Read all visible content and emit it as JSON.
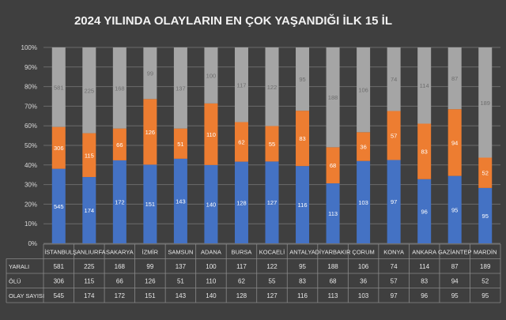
{
  "chart_data": {
    "type": "bar",
    "stacking": "percent",
    "title": "2024 YILINDA OLAYLARIN EN ÇOK YAŞANDIĞI İLK 15 İL",
    "categories": [
      "İSTANBUL",
      "ŞANLIURFA",
      "SAKARYA",
      "İZMİR",
      "SAMSUN",
      "ADANA",
      "BURSA",
      "KOCAELİ",
      "ANTALYA",
      "DİYARBAKIR",
      "ÇORUM",
      "KONYA",
      "ANKARA",
      "GAZİANTEP",
      "MARDİN"
    ],
    "series": [
      {
        "name": "OLAY SAYISI",
        "color": "#4472c4",
        "values": [
          545,
          174,
          172,
          151,
          143,
          140,
          128,
          127,
          116,
          113,
          103,
          97,
          96,
          95,
          95
        ]
      },
      {
        "name": "ÖLÜ",
        "color": "#ed7d31",
        "values": [
          306,
          115,
          66,
          126,
          51,
          110,
          62,
          55,
          83,
          68,
          36,
          57,
          83,
          94,
          52
        ]
      },
      {
        "name": "YARALI",
        "color": "#a5a5a5",
        "values": [
          581,
          225,
          168,
          99,
          137,
          100,
          117,
          122,
          95,
          188,
          106,
          74,
          114,
          87,
          189
        ]
      }
    ],
    "y_tick_labels": [
      "0%",
      "10%",
      "20%",
      "30%",
      "40%",
      "50%",
      "60%",
      "70%",
      "80%",
      "90%",
      "100%"
    ],
    "ylim": [
      0,
      100
    ],
    "grid": true,
    "table_rows": [
      {
        "label": "YARALI",
        "series": 2
      },
      {
        "label": "ÖLÜ",
        "series": 1
      },
      {
        "label": "OLAY SAYISI",
        "series": 0
      }
    ]
  }
}
